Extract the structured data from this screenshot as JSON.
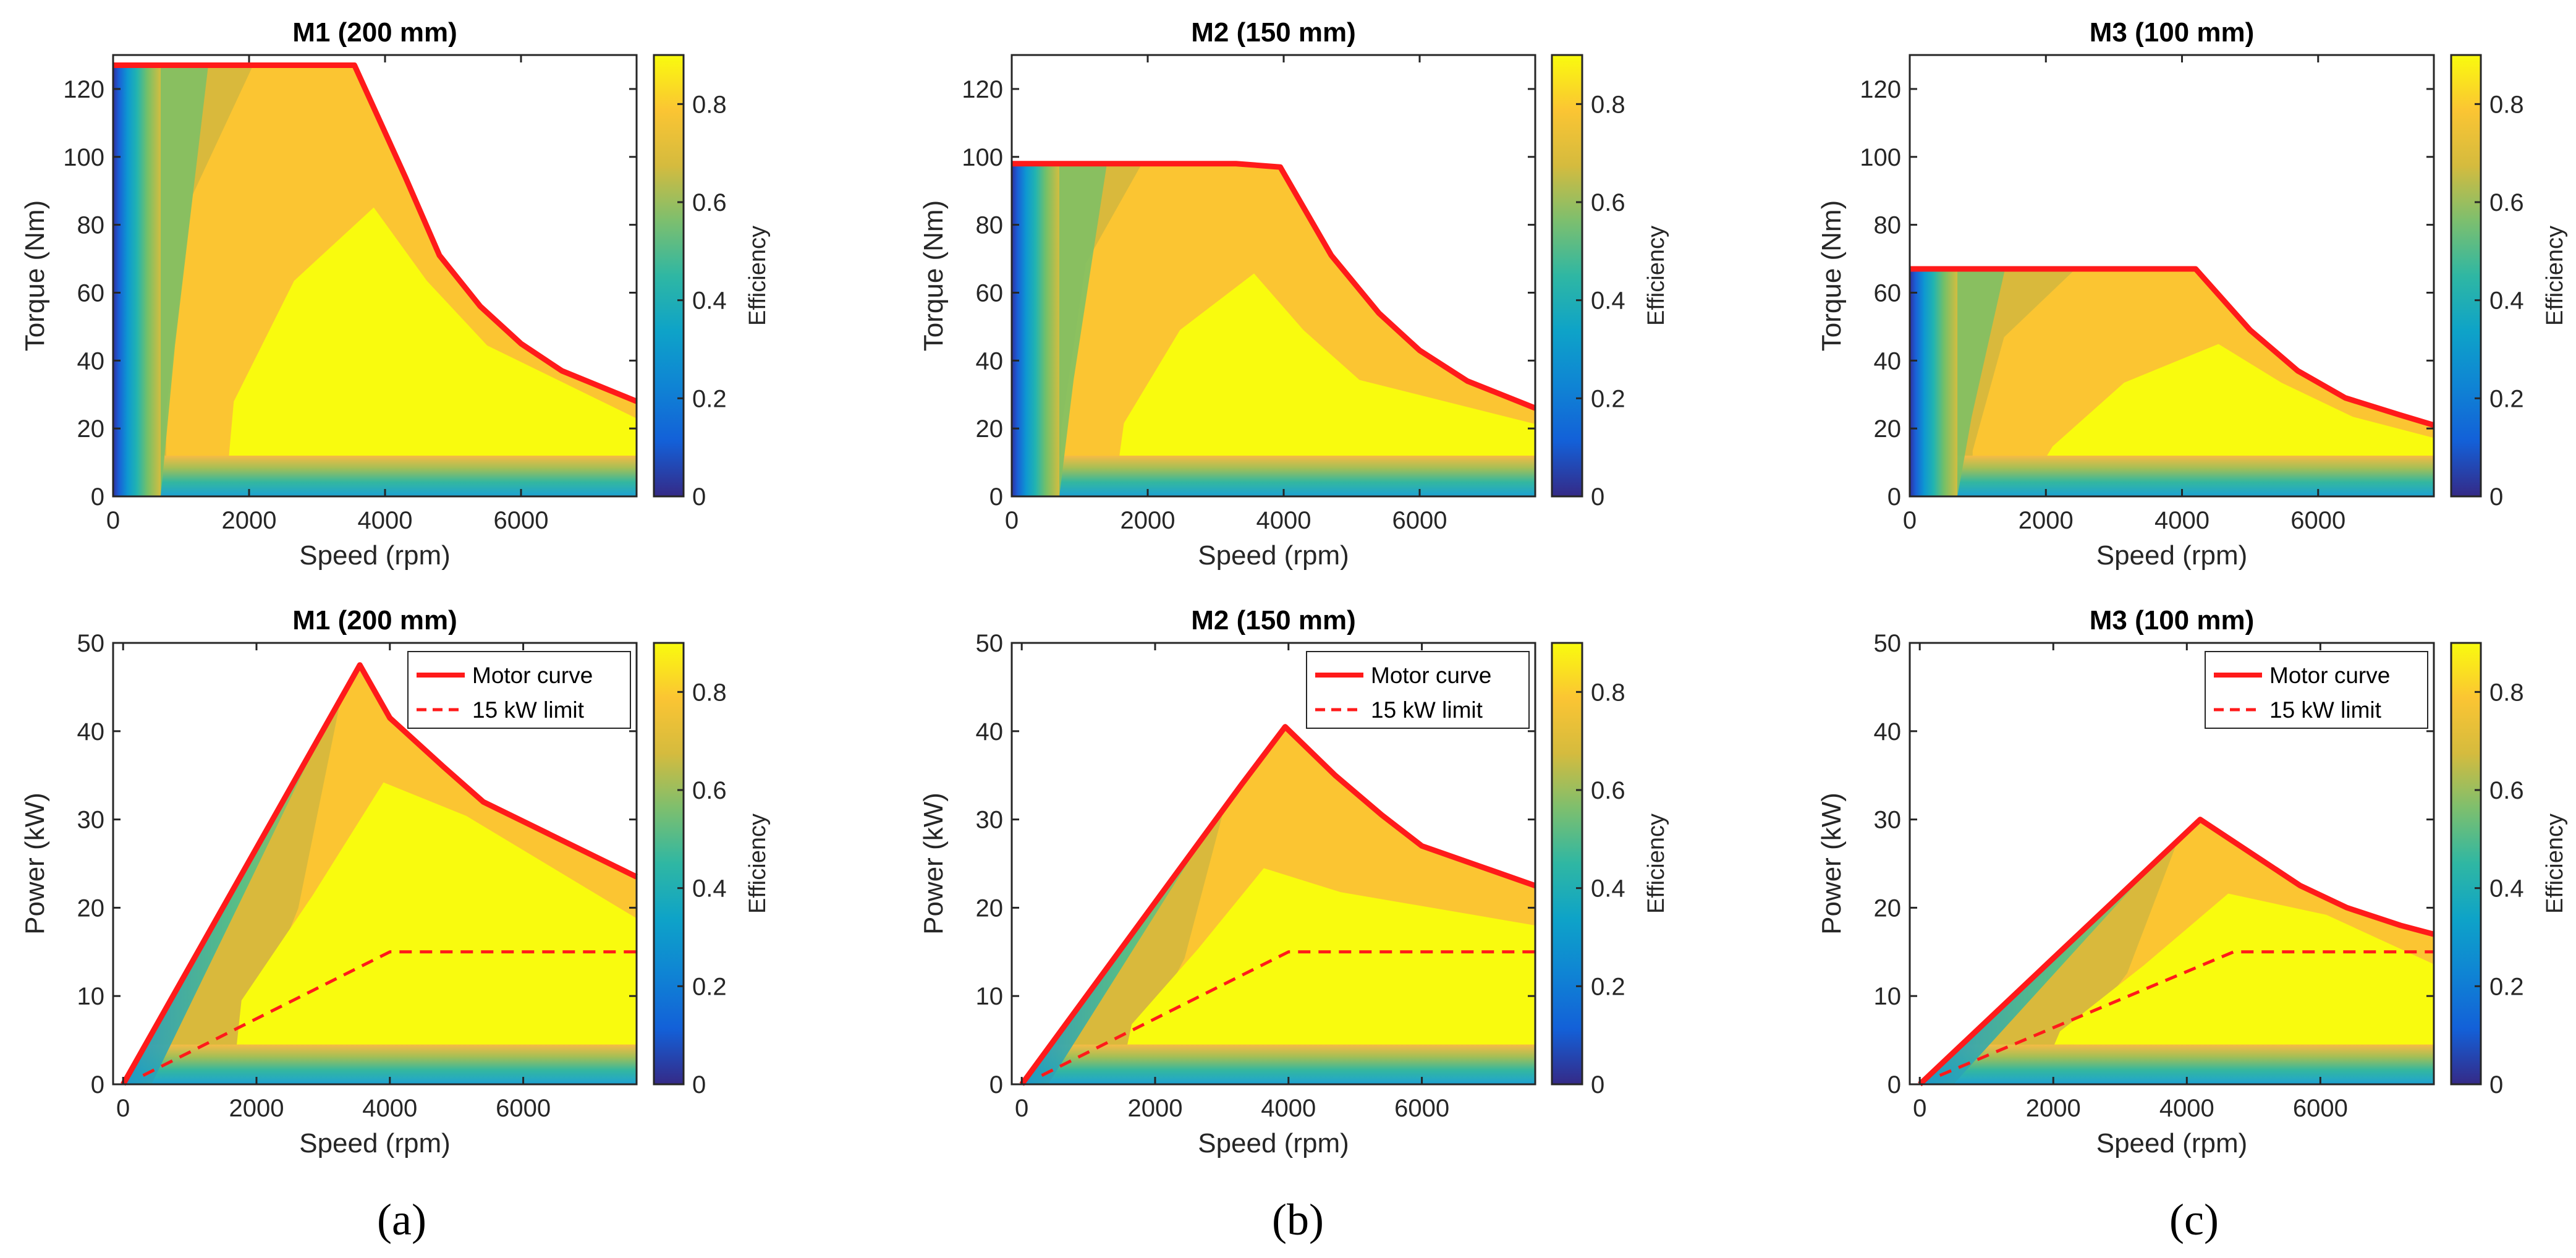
{
  "figure": {
    "panel_labels": [
      "(a)",
      "(b)",
      "(c)"
    ],
    "colorbar_label": "Efficiency",
    "colorbar_ticks": [
      "0",
      "0.2",
      "0.4",
      "0.6",
      "0.8"
    ],
    "colorbar_range": [
      0,
      0.9
    ],
    "colormap": "parula"
  },
  "chart_data": [
    {
      "type": "contour",
      "title": "M1 (200 mm)",
      "xlabel": "Speed (rpm)",
      "ylabel": "Torque (Nm)",
      "xlim": [
        0,
        7700
      ],
      "ylim": [
        0,
        130
      ],
      "xticks": [
        "0",
        "2000",
        "4000",
        "6000"
      ],
      "yticks": [
        "0",
        "20",
        "40",
        "60",
        "80",
        "100",
        "120"
      ],
      "series": [
        {
          "x": [
            0,
            3550,
            4300,
            4800,
            5400,
            6000,
            6600,
            7700
          ],
          "y": [
            127,
            127,
            94,
            71,
            56,
            45,
            37,
            28
          ]
        }
      ]
    },
    {
      "type": "contour",
      "title": "M2 (150 mm)",
      "xlabel": "Speed (rpm)",
      "ylabel": "Torque (Nm)",
      "xlim": [
        0,
        7700
      ],
      "ylim": [
        0,
        130
      ],
      "xticks": [
        "0",
        "2000",
        "4000",
        "6000"
      ],
      "yticks": [
        "0",
        "20",
        "40",
        "60",
        "80",
        "100",
        "120"
      ],
      "series": [
        {
          "x": [
            0,
            3300,
            3950,
            4700,
            5400,
            6000,
            6700,
            7700
          ],
          "y": [
            98,
            98,
            97,
            71,
            54,
            43,
            34,
            26
          ]
        }
      ]
    },
    {
      "type": "contour",
      "title": "M3 (100 mm)",
      "xlabel": "Speed (rpm)",
      "ylabel": "Torque (Nm)",
      "xlim": [
        0,
        7700
      ],
      "ylim": [
        0,
        130
      ],
      "xticks": [
        "0",
        "2000",
        "4000",
        "6000"
      ],
      "yticks": [
        "0",
        "20",
        "40",
        "60",
        "80",
        "100",
        "120"
      ],
      "series": [
        {
          "x": [
            0,
            4200,
            5000,
            5700,
            6400,
            7200,
            7700
          ],
          "y": [
            67,
            67,
            49,
            37,
            29,
            24,
            21
          ]
        }
      ]
    },
    {
      "type": "contour",
      "title": "M1 (200 mm)",
      "xlabel": "Speed (rpm)",
      "ylabel": "Power (kW)",
      "xlim": [
        -150,
        7700
      ],
      "ylim": [
        0,
        50
      ],
      "xticks": [
        "0",
        "2000",
        "4000",
        "6000"
      ],
      "yticks": [
        "0",
        "10",
        "20",
        "30",
        "40",
        "50"
      ],
      "legend": {
        "position": "top-right"
      },
      "series": [
        {
          "name": "Motor curve",
          "style": "solid",
          "x": [
            0,
            3550,
            4000,
            4800,
            5400,
            7700
          ],
          "y": [
            0,
            47.5,
            41.5,
            36,
            32,
            23.5
          ]
        },
        {
          "name": "15 kW limit",
          "style": "dashed",
          "x": [
            300,
            4000,
            7700
          ],
          "y": [
            1,
            15,
            15
          ]
        }
      ]
    },
    {
      "type": "contour",
      "title": "M2 (150 mm)",
      "xlabel": "Speed (rpm)",
      "ylabel": "Power (kW)",
      "xlim": [
        -150,
        7700
      ],
      "ylim": [
        0,
        50
      ],
      "xticks": [
        "0",
        "2000",
        "4000",
        "6000"
      ],
      "yticks": [
        "0",
        "10",
        "20",
        "30",
        "40",
        "50"
      ],
      "legend": {
        "position": "top-right"
      },
      "series": [
        {
          "name": "Motor curve",
          "style": "solid",
          "x": [
            0,
            3300,
            3950,
            4700,
            5400,
            6000,
            7700
          ],
          "y": [
            0,
            34,
            40.5,
            35,
            30.5,
            27,
            22.5
          ]
        },
        {
          "name": "15 kW limit",
          "style": "dashed",
          "x": [
            300,
            4000,
            7700
          ],
          "y": [
            1,
            15,
            15
          ]
        }
      ]
    },
    {
      "type": "contour",
      "title": "M3 (100 mm)",
      "xlabel": "Speed (rpm)",
      "ylabel": "Power (kW)",
      "xlim": [
        -150,
        7700
      ],
      "ylim": [
        0,
        50
      ],
      "xticks": [
        "0",
        "2000",
        "4000",
        "6000"
      ],
      "yticks": [
        "0",
        "10",
        "20",
        "30",
        "40",
        "50"
      ],
      "legend": {
        "position": "top-right"
      },
      "series": [
        {
          "name": "Motor curve",
          "style": "solid",
          "x": [
            0,
            4200,
            5000,
            5700,
            6400,
            7200,
            7700
          ],
          "y": [
            0,
            30,
            26,
            22.5,
            20,
            18,
            17
          ]
        },
        {
          "name": "15 kW limit",
          "style": "dashed",
          "x": [
            300,
            4700,
            7700
          ],
          "y": [
            1,
            15,
            15
          ]
        }
      ]
    }
  ]
}
